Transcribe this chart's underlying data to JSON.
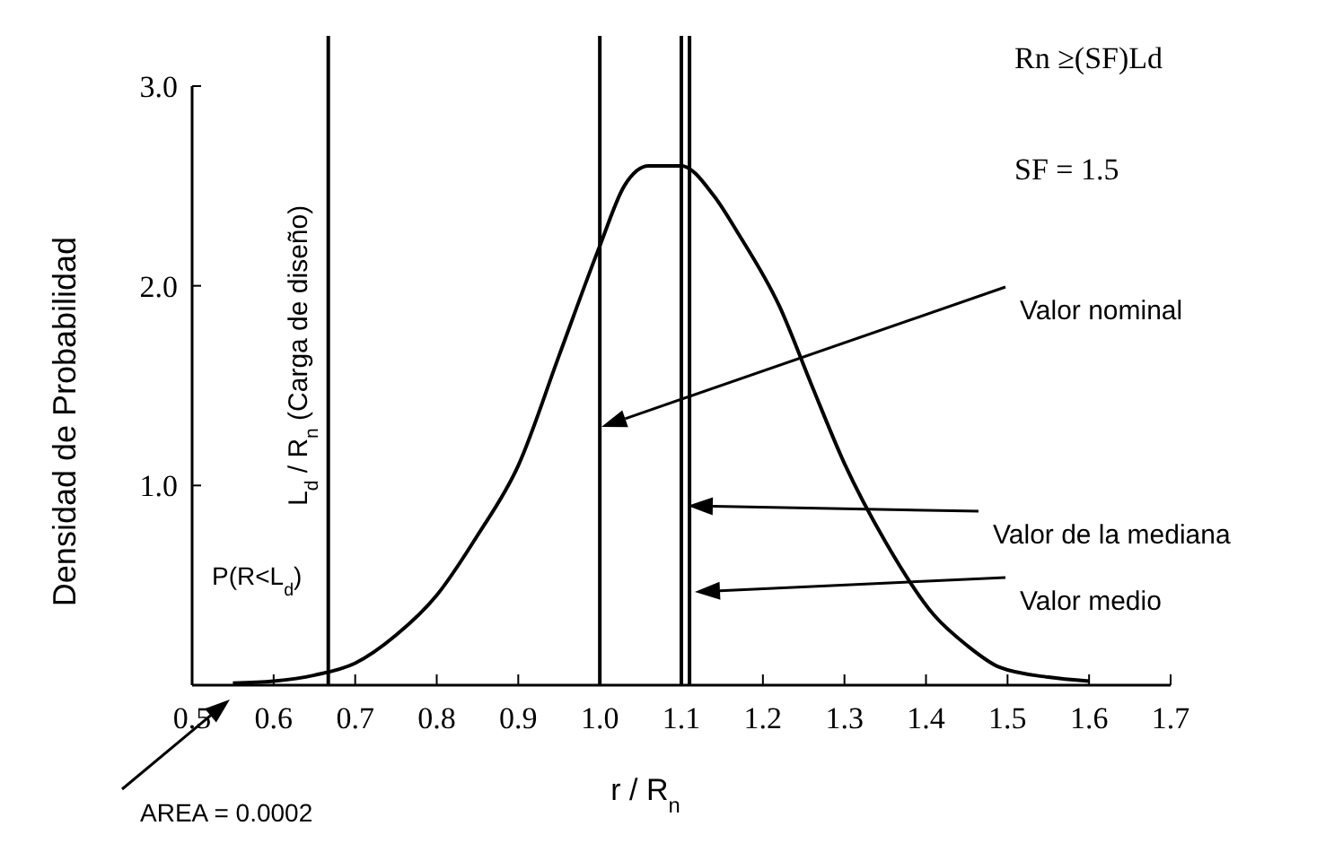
{
  "chart_data": {
    "type": "line",
    "xlabel": "r / R$_{n}$",
    "ylabel": "Densidad de Probabilidad",
    "xlim": [
      0.5,
      1.7
    ],
    "ylim": [
      0,
      3
    ],
    "xticks": [
      {
        "value": 0.5,
        "label": "0.5"
      },
      {
        "value": 0.6,
        "label": "0.6"
      },
      {
        "value": 0.7,
        "label": "0.7"
      },
      {
        "value": 0.8,
        "label": "0.8"
      },
      {
        "value": 0.9,
        "label": "0.9"
      },
      {
        "value": 1.0,
        "label": "1.0"
      },
      {
        "value": 1.1,
        "label": "1.1"
      },
      {
        "value": 1.2,
        "label": "1.2"
      },
      {
        "value": 1.3,
        "label": "1.3"
      },
      {
        "value": 1.4,
        "label": "1.4"
      },
      {
        "value": 1.5,
        "label": "1.5"
      },
      {
        "value": 1.6,
        "label": "1.6"
      },
      {
        "value": 1.7,
        "label": "1.7"
      }
    ],
    "yticks": [
      {
        "value": 1,
        "label": "1.0"
      },
      {
        "value": 2,
        "label": "2.0"
      },
      {
        "value": 3,
        "label": "3.0"
      }
    ],
    "grid": false,
    "marker": "none",
    "line_style": "solid",
    "series": [
      {
        "color": "#000000",
        "x": [
          0.55,
          0.6,
          0.65,
          0.7,
          0.75,
          0.8,
          0.85,
          0.9,
          0.95,
          1.0,
          1.03,
          1.06,
          1.1,
          1.14,
          1.17,
          1.22,
          1.26,
          1.3,
          1.35,
          1.41,
          1.45,
          1.49,
          1.55,
          1.6
        ],
        "values": [
          0.01,
          0.02,
          0.05,
          0.11,
          0.25,
          0.45,
          0.75,
          1.1,
          1.65,
          2.2,
          2.5,
          2.6,
          2.6,
          2.45,
          2.26,
          1.9,
          1.5,
          1.11,
          0.72,
          0.35,
          0.2,
          0.09,
          0.04,
          0.02
        ]
      }
    ],
    "ref_lines": [
      {
        "axis": "x",
        "value": 0.667,
        "label": "L$_{d}$ / R$_{n}$  (Carga de diseño)"
      },
      {
        "axis": "x",
        "value": 1.0
      },
      {
        "axis": "x",
        "value": 1.1
      },
      {
        "axis": "x",
        "value": 1.11
      }
    ],
    "annotations": [
      "Valor nominal",
      "Valor de la mediana",
      "Valor medio",
      "AREA = 0.0002",
      "P(R<L$_{d}$)",
      "Rn ≥(SF)Ld",
      "SF = 1.5"
    ]
  }
}
